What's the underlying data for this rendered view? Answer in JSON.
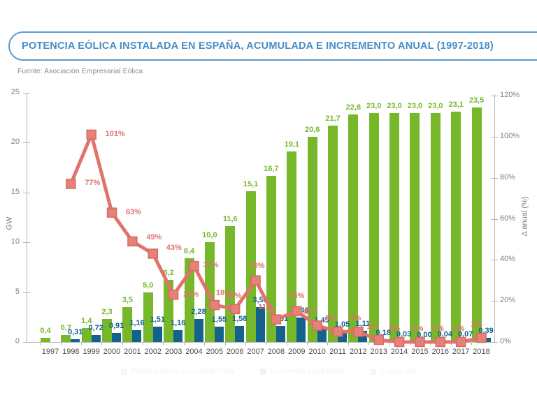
{
  "header": {
    "title": "POTENCIA EÓLICA INSTALADA EN ESPAÑA, ACUMULADA E INCREMENTO ANUAL (1997-2018)"
  },
  "source": "Fuente: Asociación Empresarial Eólica",
  "axes": {
    "left_label": "GW",
    "right_label": "Δ anual (%)",
    "left_ticks": [
      "0",
      "5",
      "10",
      "15",
      "20",
      "25"
    ],
    "right_ticks": [
      "0%",
      "20%",
      "40%",
      "60%",
      "80%",
      "100%",
      "120%"
    ]
  },
  "colors": {
    "accumulated_green": "#76b82a",
    "increment_blue": "#15618e",
    "line_salmon": "#e0736b",
    "marker_fill": "#e58179",
    "marker_border": "#d96a62",
    "title_blue": "#4a8dc3",
    "axis_gray": "#b5b5b5"
  },
  "legend": {
    "items": [
      {
        "label": "Potencia eólica acumulada (GW)",
        "color": "#76b82a"
      },
      {
        "label": "Incremento anual (GW)",
        "color": "#15618e"
      },
      {
        "label": "Δ anual (%)",
        "color": "#e0736b"
      }
    ]
  },
  "chart_data": {
    "type": "bar",
    "subtype": "bar+line-combo",
    "title": "POTENCIA EÓLICA INSTALADA EN ESPAÑA, ACUMULADA E INCREMENTO ANUAL (1997-2018)",
    "source": "Fuente: Asociación Empresarial Eólica",
    "categories": [
      "1997",
      "1998",
      "1999",
      "2000",
      "2001",
      "2002",
      "2003",
      "2004",
      "2005",
      "2006",
      "2007",
      "2008",
      "2009",
      "2010",
      "2011",
      "2012",
      "2013",
      "2014",
      "2015",
      "2016",
      "2017",
      "2018"
    ],
    "series": [
      {
        "name": "Potencia eólica acumulada (GW)",
        "type": "bar",
        "color": "#76b82a",
        "values": [
          0.4,
          0.7,
          1.4,
          2.3,
          3.5,
          5.0,
          6.2,
          8.4,
          10.0,
          11.6,
          15.1,
          16.7,
          19.1,
          20.6,
          21.7,
          22.8,
          23.0,
          23.0,
          23.0,
          23.0,
          23.1,
          23.5
        ],
        "labels": [
          "0,4",
          "0,7",
          "1,4",
          "2,3",
          "3,5",
          "5,0",
          "6,2",
          "8,4",
          "10,0",
          "11,6",
          "15,1",
          "16,7",
          "19,1",
          "20,6",
          "21,7",
          "22,8",
          "23,0",
          "23,0",
          "23,0",
          "23,0",
          "23,1",
          "23,5"
        ]
      },
      {
        "name": "Incremento anual (GW)",
        "type": "bar",
        "color": "#15618e",
        "values": [
          null,
          0.31,
          0.72,
          0.91,
          1.16,
          1.51,
          1.16,
          2.28,
          1.55,
          1.58,
          3.5,
          1.61,
          2.46,
          1.49,
          1.05,
          1.11,
          0.18,
          0.03,
          0.0,
          0.04,
          0.07,
          0.39
        ],
        "labels": [
          "",
          "0,31",
          "0,72",
          "0,91",
          "1,16",
          "1,51",
          "1,16",
          "2,28",
          "1,55",
          "1,58",
          "3,50",
          "1,61",
          "2,46",
          "1,49",
          "1,05",
          "1,11",
          "0,18",
          "0,03",
          "0,00",
          "0,04",
          "0,07",
          "0,39"
        ]
      },
      {
        "name": "Δ anual (%)",
        "type": "line",
        "color": "#e0736b",
        "values": [
          null,
          77,
          101,
          63,
          49,
          43,
          23,
          37,
          18,
          16,
          30,
          11,
          15,
          8,
          5,
          5,
          1,
          0,
          0,
          0,
          0,
          2
        ],
        "labels": [
          "",
          "77%",
          "101%",
          "63%",
          "49%",
          "43%",
          "23%",
          "37%",
          "18%",
          "16%",
          "30%",
          "11%",
          "15%",
          "8%",
          "5%",
          "5%",
          "1%",
          "0%",
          "0%",
          "0%",
          "0%",
          "2%"
        ]
      }
    ],
    "ylabel_left": "GW",
    "ylim_left": [
      0,
      25
    ],
    "yticks_left": [
      0,
      5,
      10,
      15,
      20,
      25
    ],
    "ylabel_right": "Δ anual (%)",
    "ylim_right_pct": [
      0,
      120
    ],
    "yticks_right_pct": [
      0,
      20,
      40,
      60,
      80,
      100,
      120
    ],
    "grid": false,
    "legend_position": "bottom-faded"
  }
}
